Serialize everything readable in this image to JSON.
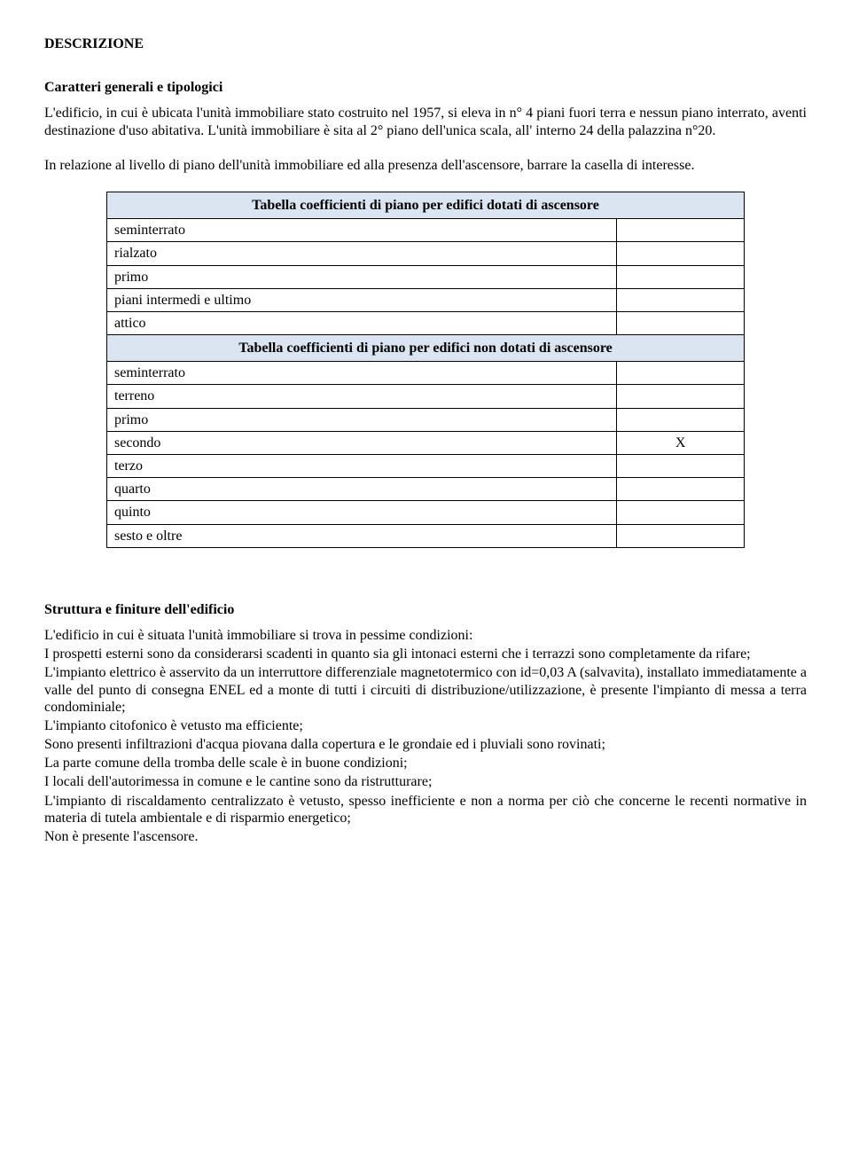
{
  "heading": "DESCRIZIONE",
  "sub1_title": "Caratteri generali e tipologici",
  "para1": "L'edificio, in cui è ubicata l'unità immobiliare stato costruito nel 1957, si eleva in n° 4 piani fuori terra e nessun piano interrato, aventi destinazione d'uso abitativa. L'unità immobiliare è sita al 2° piano dell'unica scala, all' interno 24 della palazzina n°20.",
  "para2": "In relazione al livello di piano dell'unità immobiliare ed alla presenza dell'ascensore, barrare la casella di interesse.",
  "table": {
    "header1": "Tabella coefficienti di piano per edifici dotati di ascensore",
    "rows1": [
      {
        "label": "seminterrato",
        "value": ""
      },
      {
        "label": "rialzato",
        "value": ""
      },
      {
        "label": "primo",
        "value": ""
      },
      {
        "label": "piani intermedi e ultimo",
        "value": ""
      },
      {
        "label": "attico",
        "value": ""
      }
    ],
    "header2": "Tabella coefficienti di piano per edifici non dotati di ascensore",
    "rows2": [
      {
        "label": "seminterrato",
        "value": ""
      },
      {
        "label": "terreno",
        "value": ""
      },
      {
        "label": "primo",
        "value": ""
      },
      {
        "label": "secondo",
        "value": "X"
      },
      {
        "label": "terzo",
        "value": ""
      },
      {
        "label": "quarto",
        "value": ""
      },
      {
        "label": "quinto",
        "value": ""
      },
      {
        "label": "sesto e oltre",
        "value": ""
      }
    ],
    "header_bg": "#dbe5f1",
    "border_color": "#000000"
  },
  "sub2_title": "Struttura e finiture dell'edificio",
  "finiture": {
    "p1": "L'edificio in cui è situata l'unità immobiliare si trova in pessime condizioni:",
    "p2": "I prospetti esterni sono da considerarsi scadenti in quanto sia gli intonaci esterni che i terrazzi sono completamente da rifare;",
    "p3": "L'impianto elettrico è asservito da un interruttore differenziale magnetotermico con id=0,03 A (salvavita), installato immediatamente a valle del punto di consegna ENEL ed a monte di tutti i circuiti di distribuzione/utilizzazione, è presente l'impianto di messa a terra condominiale;",
    "p4": "L'impianto citofonico è vetusto ma efficiente;",
    "p5": "Sono presenti infiltrazioni d'acqua piovana dalla copertura e le grondaie ed i pluviali sono rovinati;",
    "p6": "La parte comune della tromba delle scale è in buone condizioni;",
    "p7": "I locali dell'autorimessa in comune e le cantine sono da ristrutturare;",
    "p8": "L'impianto di riscaldamento centralizzato è vetusto, spesso inefficiente e non a norma per ciò che concerne le recenti normative in materia di tutela ambientale e di risparmio energetico;",
    "p9": "Non è presente l'ascensore."
  }
}
